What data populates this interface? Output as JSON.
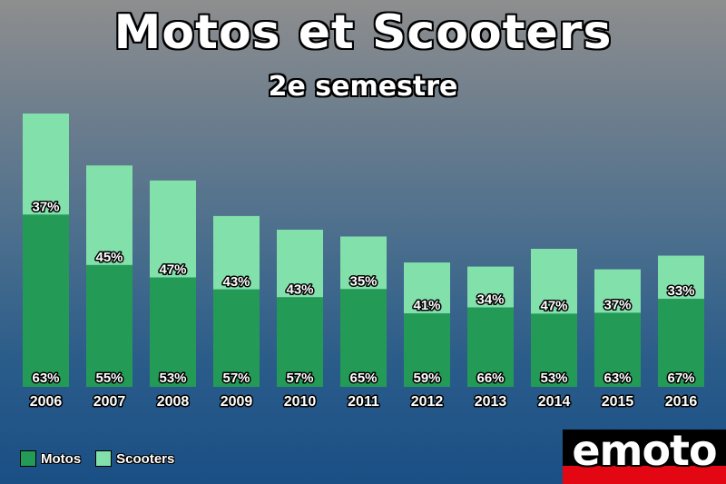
{
  "chart_data": {
    "type": "bar",
    "stacked": true,
    "title": "Motos et Scooters",
    "subtitle": "2e semestre",
    "categories": [
      "2006",
      "2007",
      "2008",
      "2009",
      "2010",
      "2011",
      "2012",
      "2013",
      "2014",
      "2015",
      "2016"
    ],
    "series": [
      {
        "name": "Motos",
        "color": "#239b56",
        "percent_labels": [
          "63%",
          "55%",
          "53%",
          "57%",
          "57%",
          "65%",
          "59%",
          "66%",
          "53%",
          "63%",
          "67%"
        ]
      },
      {
        "name": "Scooters",
        "color": "#82e0aa",
        "percent_labels": [
          "37%",
          "45%",
          "47%",
          "43%",
          "43%",
          "35%",
          "41%",
          "34%",
          "47%",
          "37%",
          "33%"
        ]
      }
    ],
    "relative_totals": [
      1.0,
      0.81,
      0.755,
      0.625,
      0.575,
      0.55,
      0.455,
      0.44,
      0.505,
      0.43,
      0.48
    ],
    "legend_position": "bottom-left",
    "grid": false,
    "xlabel": "",
    "ylabel": ""
  },
  "branding": {
    "logo_text": "emoto"
  }
}
